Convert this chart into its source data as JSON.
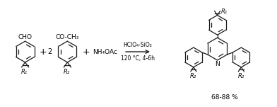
{
  "bg_color": "#ffffff",
  "line_color": "#1a1a1a",
  "text_color": "#000000",
  "figsize": [
    3.92,
    1.51
  ],
  "dpi": 100,
  "reaction_conditions_line1": "HClO₄-SiO₂",
  "reaction_conditions_line2": "120 °C, 4-6h",
  "yield_text": "68-88 %",
  "reagent3": "NH₄OAc",
  "coeff2": "2",
  "plus": "+",
  "label_R1_aldehyde": "R₁",
  "label_R2_ketone": "R₂",
  "label_R1_product": "R₁",
  "label_R2_product_left": "R₂",
  "label_R2_product_right": "R₂",
  "group_CHO": "CHO",
  "group_COCH3": "CO-CH₃",
  "group_N": "N"
}
